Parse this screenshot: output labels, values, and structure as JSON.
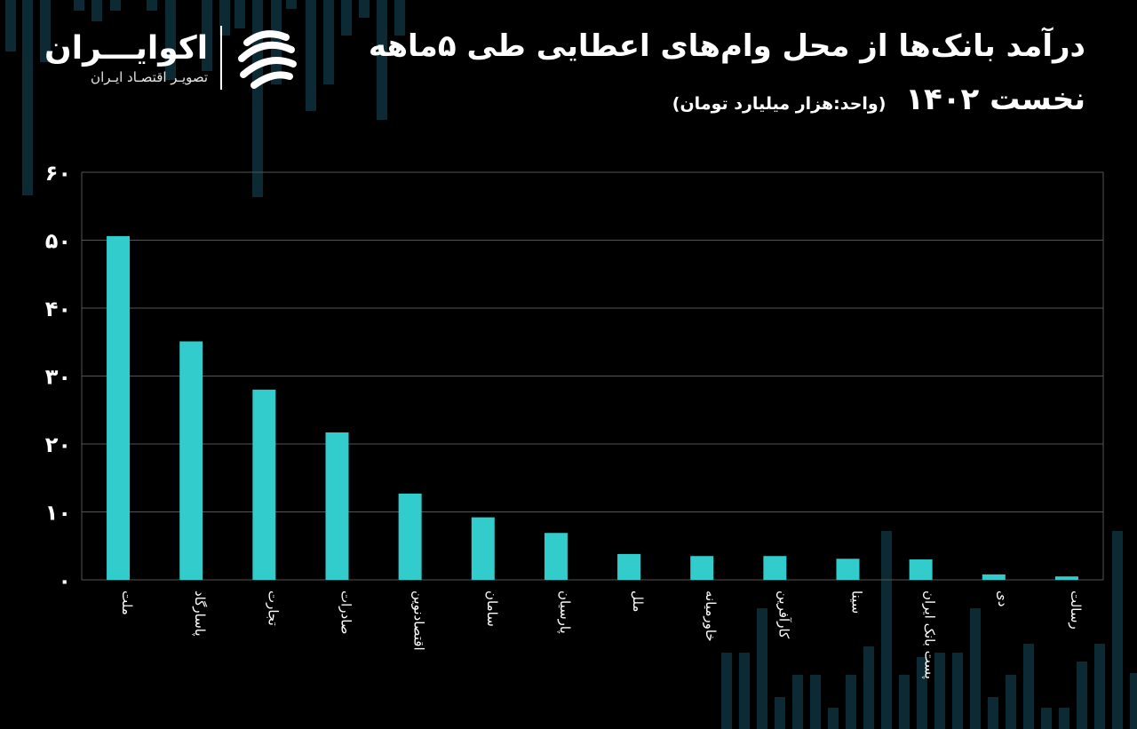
{
  "brand": {
    "name": "اکوایـــران",
    "tagline": "تصویـر اقتصـاد ایـران"
  },
  "title": {
    "line1": "درآمد بانک‌ها از محل وام‌های اعطایی طی ۵ماهه",
    "line2": "نخست ۱۴۰۲",
    "unit": "(واحد:هزار میلیارد تومان)"
  },
  "colors": {
    "background": "#000000",
    "bar": "#33cccc",
    "grid": "#555555",
    "text": "#ffffff"
  },
  "chart_data": {
    "type": "bar",
    "categories": [
      "ملت",
      "پاسارگاد",
      "تجارت",
      "صادرات",
      "اقتصادنوین",
      "سامان",
      "پارسیان",
      "ملل",
      "خاورمیانه",
      "کارآفرین",
      "سینا",
      "پست بانک ایران",
      "دی",
      "رسالت"
    ],
    "values": [
      50.6,
      35.1,
      28.0,
      21.7,
      12.7,
      9.2,
      6.9,
      3.8,
      3.5,
      3.5,
      3.1,
      3.0,
      0.8,
      0.5
    ],
    "ylim": [
      0,
      60
    ],
    "yticks": [
      0,
      10,
      20,
      30,
      40,
      50,
      60
    ],
    "ytick_labels": [
      "۰",
      "۱۰",
      "۲۰",
      "۳۰",
      "۴۰",
      "۵۰",
      "۶۰"
    ],
    "xlabel": "",
    "ylabel": "",
    "grid": true,
    "legend": "none"
  }
}
